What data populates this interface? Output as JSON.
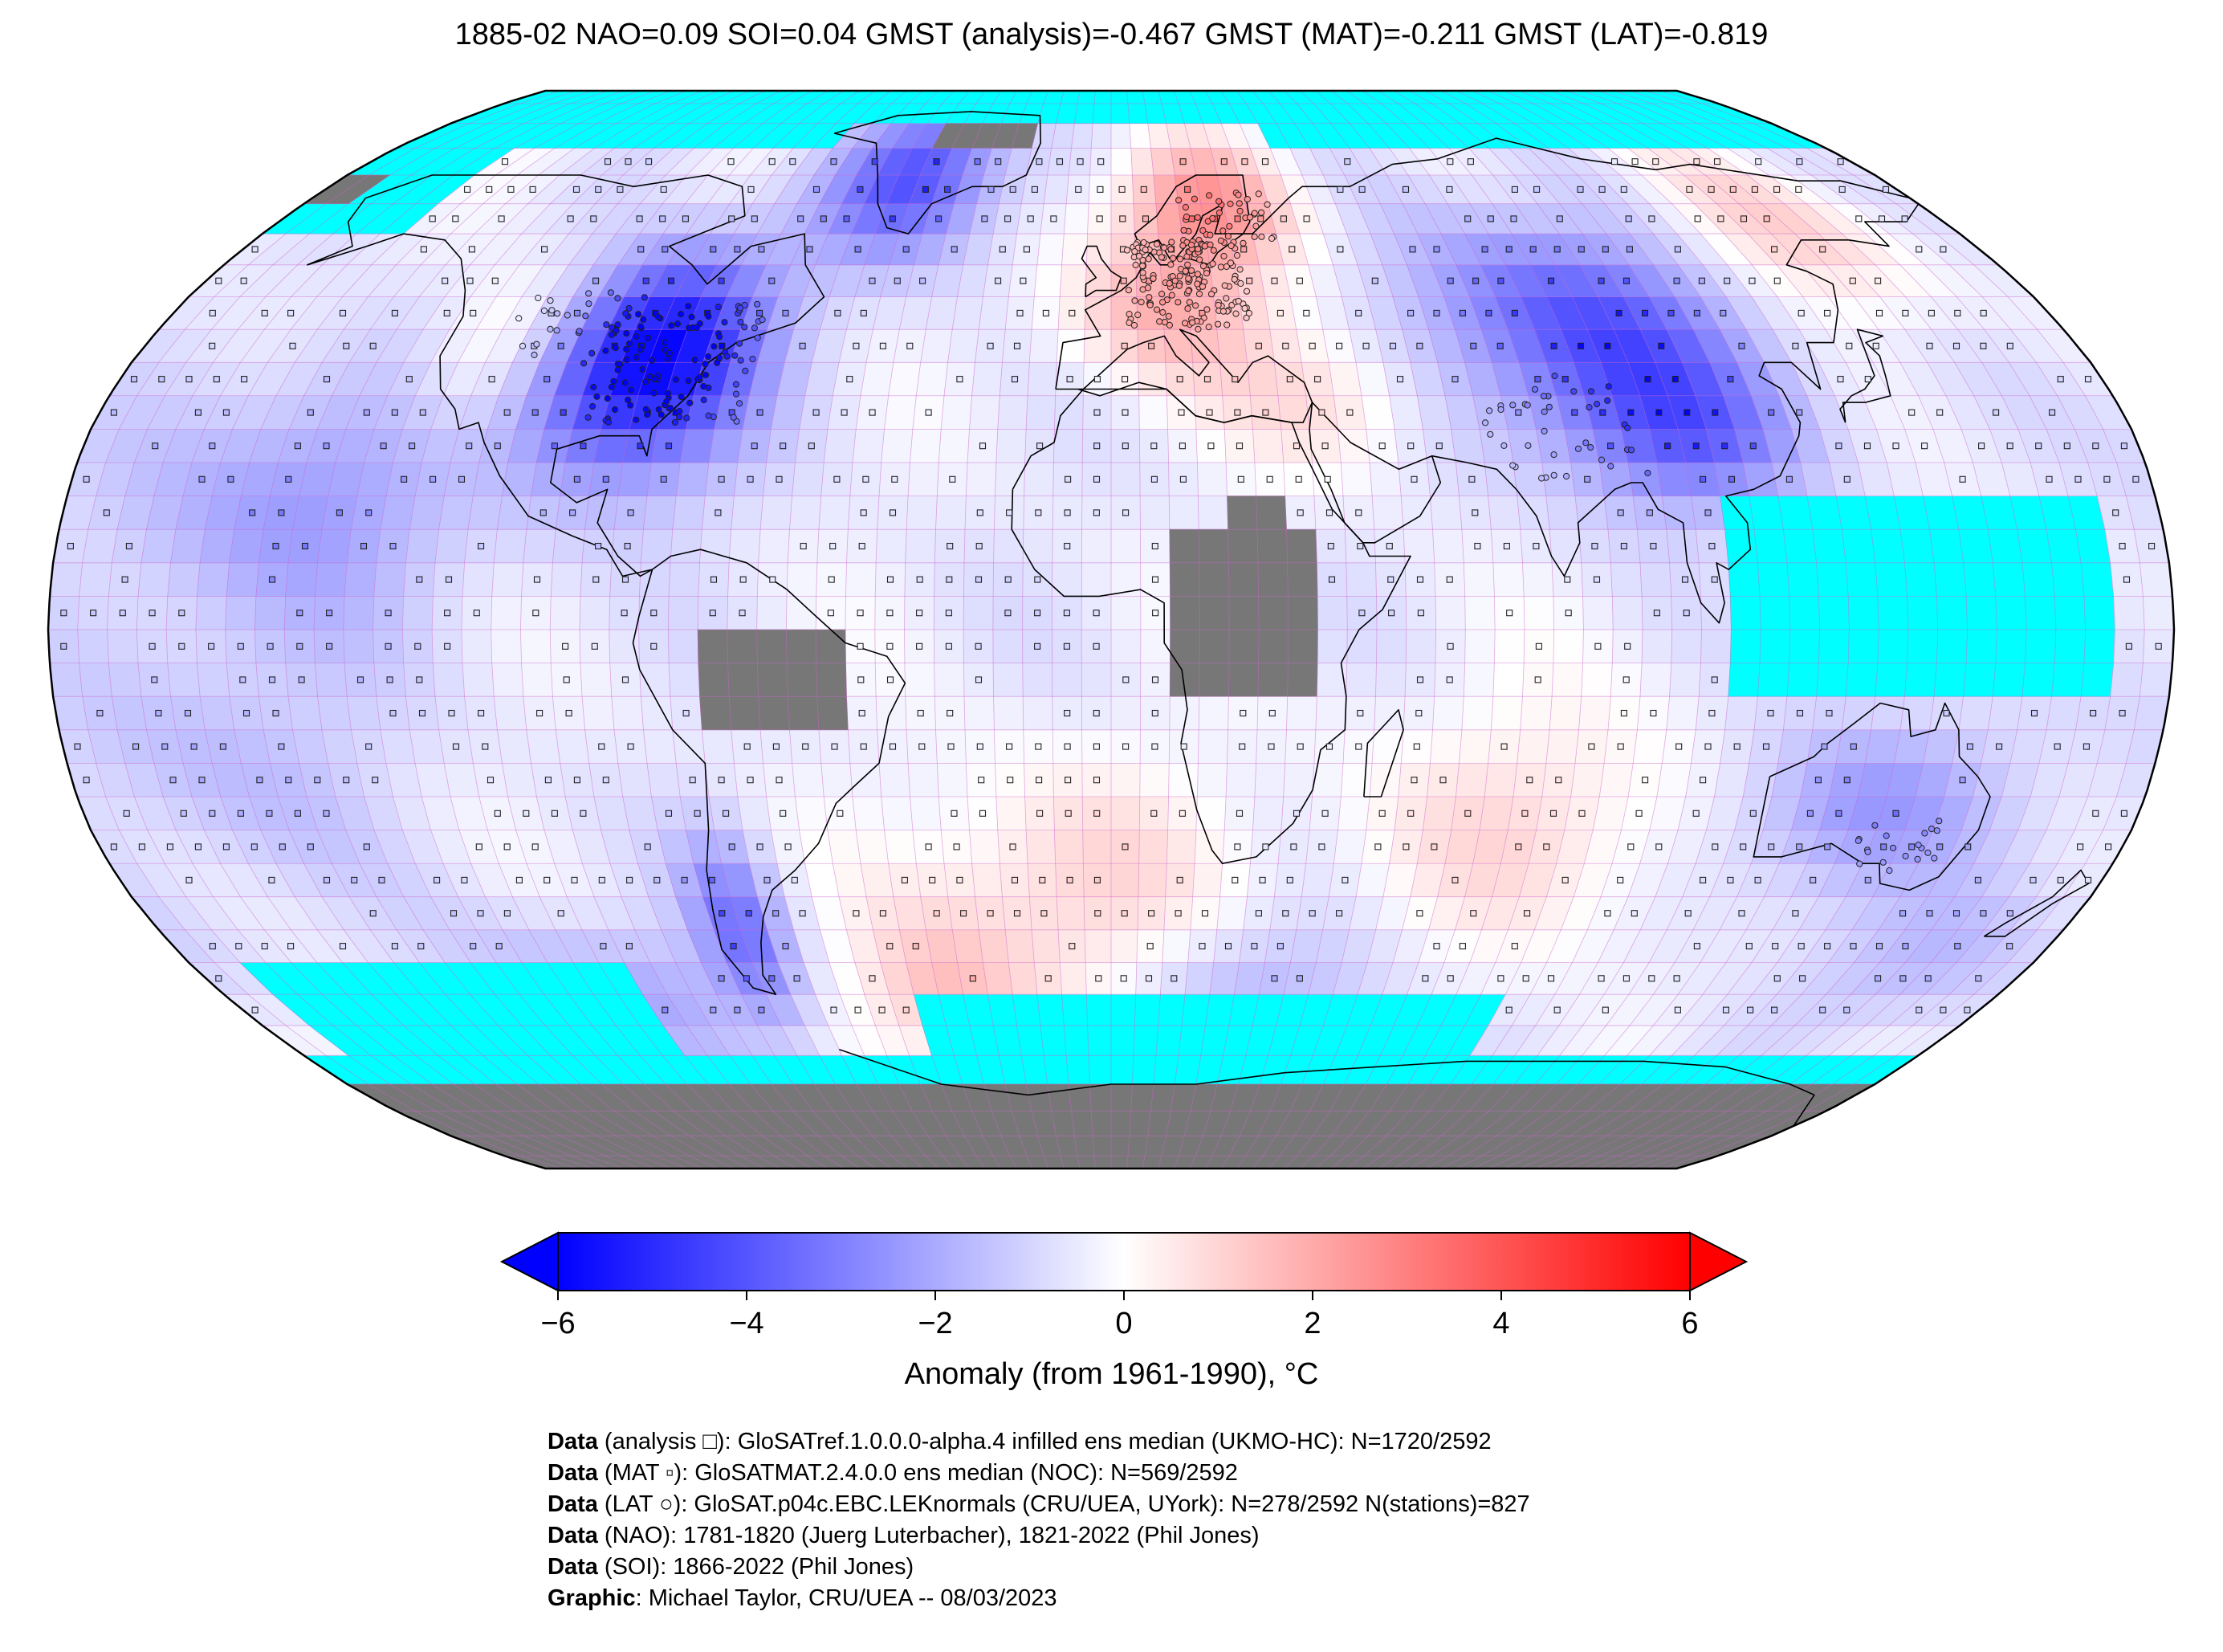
{
  "title": "1885-02 NAO=0.09 SOI=0.04 GMST (analysis)=-0.467 GMST (MAT)=-0.211 GMST (LAT)=-0.819",
  "projection": "Robinson",
  "grid_resolution_deg": 5,
  "colors": {
    "no_data": "#00ffff",
    "land_missing": "#777777",
    "coast": "#000000",
    "grid_line": "#cc66cc",
    "scale_min": "#0000ff",
    "scale_mid": "#ffffff",
    "scale_max": "#ff0000"
  },
  "colorbar": {
    "min": -6,
    "max": 6,
    "ticks": [
      "−6",
      "−4",
      "−2",
      "0",
      "2",
      "4",
      "6"
    ],
    "tick_values": [
      -6,
      -4,
      -2,
      0,
      2,
      4,
      6
    ],
    "extend": "both",
    "label": "Anomaly (from 1961-1990), °C"
  },
  "markers": {
    "analysis": "square",
    "MAT": "small-square",
    "LAT": "circle"
  },
  "regions": {
    "north_america_cold": -5.5,
    "greenland_cold": -3.5,
    "scandinavia_warm": 2.8,
    "europe_warm": 2.0,
    "central_asia_cold": -3.5,
    "east_siberia_warm": 1.5,
    "australia_cold": -2.0,
    "patagonia_cold": -2.5,
    "south_atlantic_warm": 1.5,
    "indian_ocean_warm": 1.2
  },
  "credits": [
    {
      "bold": "Data",
      "text": " (analysis □): GloSATref.1.0.0.0-alpha.4 infilled ens median (UKMO-HC): N=1720/2592"
    },
    {
      "bold": "Data",
      "text": " (MAT ▫): GloSATMAT.2.4.0.0 ens median (NOC): N=569/2592"
    },
    {
      "bold": "Data",
      "text": " (LAT ○): GloSAT.p04c.EBC.LEKnormals (CRU/UEA, UYork): N=278/2592 N(stations)=827"
    },
    {
      "bold": "Data",
      "text": " (NAO): 1781-1820 (Juerg Luterbacher), 1821-2022 (Phil Jones)"
    },
    {
      "bold": "Data",
      "text": " (SOI): 1866-2022 (Phil Jones)"
    },
    {
      "bold": "Graphic",
      "text": ": Michael Taylor, CRU/UEA -- 08/03/2023"
    }
  ]
}
